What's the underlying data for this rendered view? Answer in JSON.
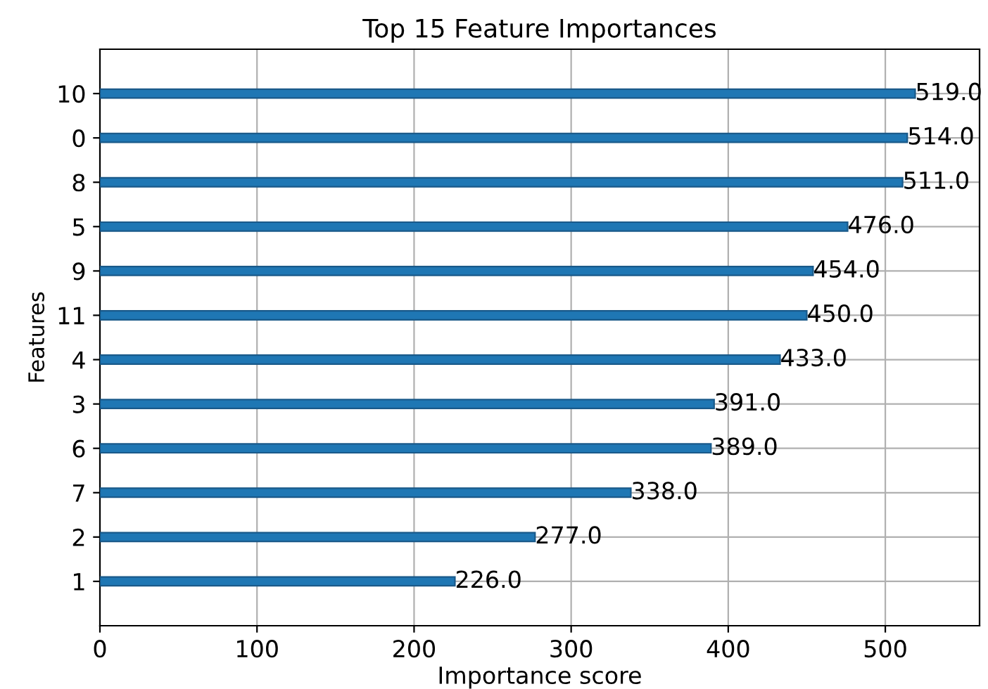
{
  "chart_data": {
    "type": "bar",
    "orientation": "horizontal",
    "title": "Top 15 Feature Importances",
    "xlabel": "Importance score",
    "ylabel": "Features",
    "categories": [
      "10",
      "0",
      "8",
      "5",
      "9",
      "11",
      "4",
      "3",
      "6",
      "7",
      "2",
      "1"
    ],
    "values": [
      519,
      514,
      511,
      476,
      454,
      450,
      433,
      391,
      389,
      338,
      277,
      226
    ],
    "value_labels": [
      "519.0",
      "514.0",
      "511.0",
      "476.0",
      "454.0",
      "450.0",
      "433.0",
      "391.0",
      "389.0",
      "338.0",
      "277.0",
      "226.0"
    ],
    "color": "#1f77b4",
    "xlim": [
      0,
      560
    ],
    "xticks": [
      0,
      100,
      200,
      300,
      400,
      500
    ],
    "grid": true
  }
}
